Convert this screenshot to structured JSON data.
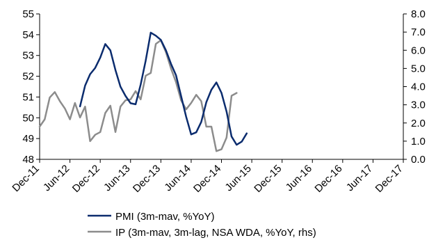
{
  "chart_data": {
    "type": "line",
    "title": "",
    "xlabel": "",
    "ylabel": "",
    "y_left": {
      "min": 48,
      "max": 55,
      "step": 1,
      "tick_labels": [
        "48",
        "49",
        "50",
        "51",
        "52",
        "53",
        "54",
        "55"
      ]
    },
    "y_right": {
      "min": 0,
      "max": 8,
      "step": 1,
      "tick_labels": [
        "0.0",
        "1.0",
        "2.0",
        "3.0",
        "4.0",
        "5.0",
        "6.0",
        "7.0",
        "8.0"
      ]
    },
    "x_axis": {
      "start": "2011-12",
      "end": "2017-12",
      "tick_labels": [
        "Dec-11",
        "Jun-12",
        "Dec-12",
        "Jun-13",
        "Dec-13",
        "Jun-14",
        "Dec-14",
        "Jun-15",
        "Dec-15",
        "Jun-16",
        "Dec-16",
        "Jun-17",
        "Dec-17"
      ]
    },
    "grid": false,
    "legend_position": "bottom",
    "series": [
      {
        "name": "PMI (3m-mav, %YoY)",
        "axis": "left",
        "color": "#0b2c6e",
        "points": [
          {
            "x": "2012-08",
            "y": 50.55
          },
          {
            "x": "2012-09",
            "y": 51.55
          },
          {
            "x": "2012-10",
            "y": 52.1
          },
          {
            "x": "2012-11",
            "y": 52.4
          },
          {
            "x": "2012-12",
            "y": 52.9
          },
          {
            "x": "2013-01",
            "y": 53.55
          },
          {
            "x": "2013-02",
            "y": 53.25
          },
          {
            "x": "2013-03",
            "y": 52.3
          },
          {
            "x": "2013-04",
            "y": 51.5
          },
          {
            "x": "2013-05",
            "y": 51.05
          },
          {
            "x": "2013-06",
            "y": 50.7
          },
          {
            "x": "2013-07",
            "y": 50.65
          },
          {
            "x": "2013-08",
            "y": 51.6
          },
          {
            "x": "2013-09",
            "y": 52.75
          },
          {
            "x": "2013-10",
            "y": 54.1
          },
          {
            "x": "2013-11",
            "y": 53.95
          },
          {
            "x": "2013-12",
            "y": 53.75
          },
          {
            "x": "2014-01",
            "y": 53.25
          },
          {
            "x": "2014-02",
            "y": 52.6
          },
          {
            "x": "2014-03",
            "y": 52.05
          },
          {
            "x": "2014-04",
            "y": 51.05
          },
          {
            "x": "2014-05",
            "y": 50.05
          },
          {
            "x": "2014-06",
            "y": 49.2
          },
          {
            "x": "2014-07",
            "y": 49.3
          },
          {
            "x": "2014-08",
            "y": 49.8
          },
          {
            "x": "2014-09",
            "y": 50.75
          },
          {
            "x": "2014-10",
            "y": 51.35
          },
          {
            "x": "2014-11",
            "y": 51.7
          },
          {
            "x": "2014-12",
            "y": 51.2
          },
          {
            "x": "2015-01",
            "y": 50.3
          },
          {
            "x": "2015-02",
            "y": 49.1
          },
          {
            "x": "2015-03",
            "y": 48.7
          },
          {
            "x": "2015-04",
            "y": 48.85
          },
          {
            "x": "2015-05",
            "y": 49.25
          }
        ]
      },
      {
        "name": "IP (3m-mav, 3m-lag, NSA WDA, %YoY, rhs)",
        "axis": "right",
        "color": "#8c8c8c",
        "points": [
          {
            "x": "2011-12",
            "y": 1.8
          },
          {
            "x": "2012-01",
            "y": 2.2
          },
          {
            "x": "2012-02",
            "y": 3.4
          },
          {
            "x": "2012-03",
            "y": 3.7
          },
          {
            "x": "2012-04",
            "y": 3.2
          },
          {
            "x": "2012-05",
            "y": 2.8
          },
          {
            "x": "2012-06",
            "y": 2.2
          },
          {
            "x": "2012-07",
            "y": 3.1
          },
          {
            "x": "2012-08",
            "y": 2.3
          },
          {
            "x": "2012-09",
            "y": 2.9
          },
          {
            "x": "2012-10",
            "y": 1.0
          },
          {
            "x": "2012-11",
            "y": 1.35
          },
          {
            "x": "2012-12",
            "y": 1.5
          },
          {
            "x": "2013-01",
            "y": 2.55
          },
          {
            "x": "2013-02",
            "y": 2.95
          },
          {
            "x": "2013-03",
            "y": 1.5
          },
          {
            "x": "2013-04",
            "y": 2.9
          },
          {
            "x": "2013-05",
            "y": 3.25
          },
          {
            "x": "2013-06",
            "y": 3.3
          },
          {
            "x": "2013-07",
            "y": 3.75
          },
          {
            "x": "2013-08",
            "y": 3.3
          },
          {
            "x": "2013-09",
            "y": 4.6
          },
          {
            "x": "2013-10",
            "y": 4.75
          },
          {
            "x": "2013-11",
            "y": 6.35
          },
          {
            "x": "2013-12",
            "y": 6.55
          },
          {
            "x": "2014-01",
            "y": 5.9
          },
          {
            "x": "2014-02",
            "y": 5.0
          },
          {
            "x": "2014-03",
            "y": 4.25
          },
          {
            "x": "2014-04",
            "y": 3.25
          },
          {
            "x": "2014-05",
            "y": 2.75
          },
          {
            "x": "2014-06",
            "y": 3.1
          },
          {
            "x": "2014-07",
            "y": 3.55
          },
          {
            "x": "2014-08",
            "y": 3.2
          },
          {
            "x": "2014-09",
            "y": 1.8
          },
          {
            "x": "2014-10",
            "y": 1.8
          },
          {
            "x": "2014-11",
            "y": 0.45
          },
          {
            "x": "2014-12",
            "y": 0.55
          },
          {
            "x": "2015-01",
            "y": 1.2
          },
          {
            "x": "2015-02",
            "y": 3.5
          },
          {
            "x": "2015-03",
            "y": 3.65
          }
        ]
      }
    ]
  }
}
